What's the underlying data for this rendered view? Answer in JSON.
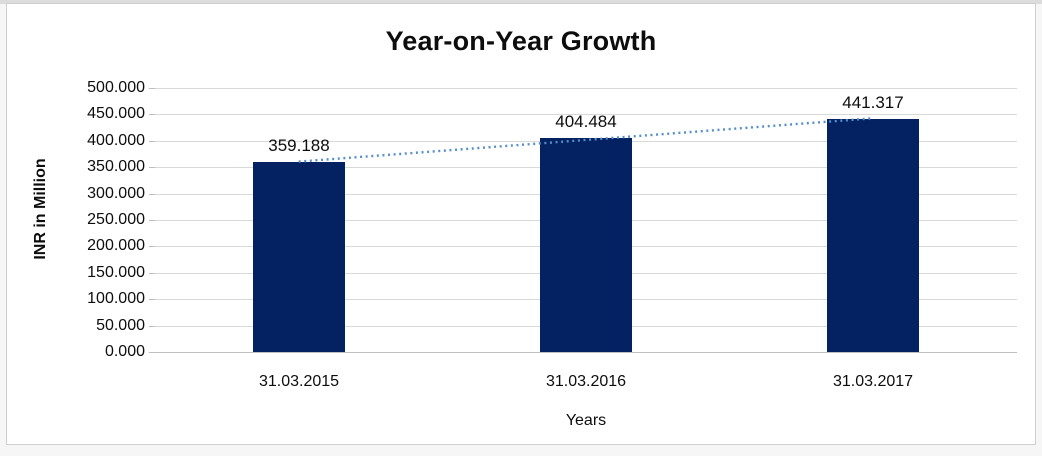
{
  "chart_data": {
    "type": "bar",
    "title": "Year-on-Year Growth",
    "categories": [
      "31.03.2015",
      "31.03.2016",
      "31.03.2017"
    ],
    "values": [
      359.188,
      404.484,
      441.317
    ],
    "value_labels": [
      "359.188",
      "404.484",
      "441.317"
    ],
    "xlabel": "Years",
    "ylabel": "INR in Million",
    "ylim": [
      0,
      500
    ],
    "ytick_step": 50,
    "ytick_labels": [
      "0.000",
      "50.000",
      "100.000",
      "150.000",
      "200.000",
      "250.000",
      "300.000",
      "350.000",
      "400.000",
      "450.000",
      "500.000"
    ],
    "grid": true,
    "legend_position": "none",
    "bar_color": "#042161",
    "gridline_color": "#d9d9d9",
    "axis_color": "#bfbfbf",
    "text_color": "#0d0d0d",
    "trendline": {
      "type": "linear",
      "style": "dotted",
      "color": "#568ecb"
    }
  }
}
